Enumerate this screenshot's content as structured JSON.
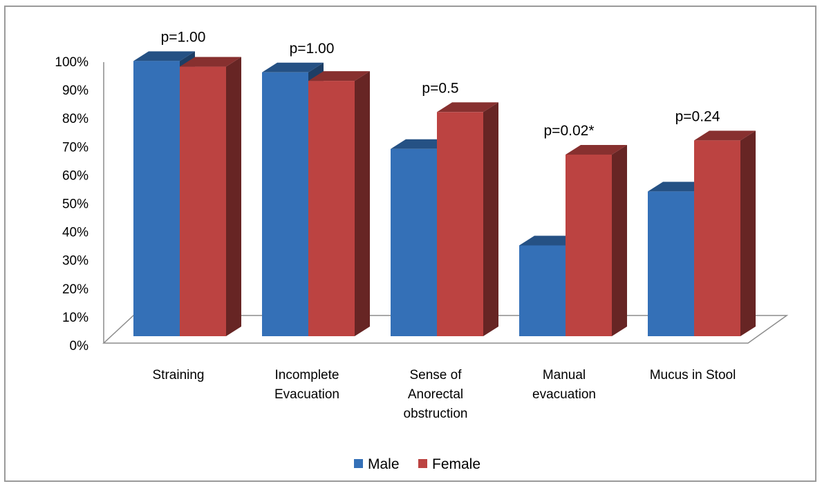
{
  "chart_data": {
    "type": "bar",
    "three_d": true,
    "categories": [
      [
        "Straining"
      ],
      [
        "Incomplete",
        "Evacuation"
      ],
      [
        "Sense of",
        "Anorectal",
        "obstruction"
      ],
      [
        "Manual",
        "evacuation"
      ],
      [
        "Mucus in Stool"
      ]
    ],
    "series": [
      {
        "name": "Male",
        "color": "#3470B7",
        "values": [
          97,
          93,
          66,
          32,
          51
        ]
      },
      {
        "name": "Female",
        "color": "#BC4341",
        "values": [
          95,
          90,
          79,
          64,
          69
        ]
      }
    ],
    "annotations": [
      "p=1.00",
      "p=1.00",
      "p=0.5",
      "p=0.02*",
      "p=0.24"
    ],
    "ylim": [
      0,
      100
    ],
    "yticks": [
      "0%",
      "10%",
      "20%",
      "30%",
      "40%",
      "50%",
      "60%",
      "70%",
      "80%",
      "90%",
      "100%"
    ],
    "title": "",
    "xlabel": "",
    "ylabel": "",
    "legend_position": "bottom",
    "grid": false
  }
}
